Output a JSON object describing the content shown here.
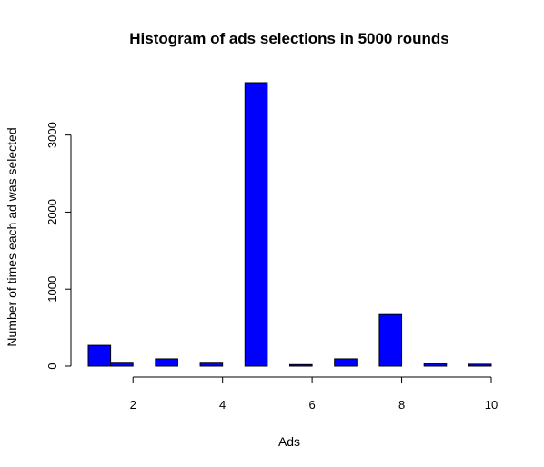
{
  "chart_data": {
    "type": "bar",
    "title": "Histogram of ads selections in 5000 rounds",
    "xlabel": "Ads",
    "ylabel": "Number of times each ad was selected",
    "bar_color": "#0000FF",
    "bins": [
      {
        "x0": 1.0,
        "x1": 1.5,
        "count": 270
      },
      {
        "x0": 1.5,
        "x1": 2.0,
        "count": 50
      },
      {
        "x0": 2.5,
        "x1": 3.0,
        "count": 95
      },
      {
        "x0": 3.5,
        "x1": 4.0,
        "count": 50
      },
      {
        "x0": 4.5,
        "x1": 5.0,
        "count": 3680
      },
      {
        "x0": 5.5,
        "x1": 6.0,
        "count": 20
      },
      {
        "x0": 6.5,
        "x1": 7.0,
        "count": 95
      },
      {
        "x0": 7.5,
        "x1": 8.0,
        "count": 670
      },
      {
        "x0": 8.5,
        "x1": 9.0,
        "count": 35
      },
      {
        "x0": 9.5,
        "x1": 10.0,
        "count": 25
      }
    ],
    "xlim": [
      1,
      10
    ],
    "ylim": [
      0,
      3680
    ],
    "xticks": [
      2,
      4,
      6,
      8,
      10
    ],
    "yticks": [
      0,
      1000,
      2000,
      3000
    ],
    "grid": false
  }
}
